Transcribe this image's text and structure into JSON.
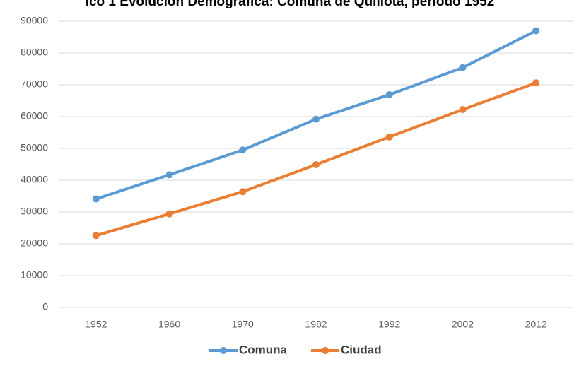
{
  "chart_data": {
    "type": "line",
    "title": "ico 1 Evolución Demográfica: Comuna de Quillota, período 1952",
    "categories": [
      "1952",
      "1960",
      "1970",
      "1982",
      "1992",
      "2002",
      "2012"
    ],
    "series": [
      {
        "name": "Comuna",
        "color": "#5b9bd5",
        "values": [
          34100,
          41700,
          49500,
          59200,
          66900,
          75400,
          87000
        ]
      },
      {
        "name": "Ciudad",
        "color": "#ed7d31",
        "values": [
          22600,
          29400,
          36400,
          44900,
          53600,
          62200,
          70600
        ]
      }
    ],
    "ylim": [
      0,
      90000
    ],
    "yticks": [
      0,
      10000,
      20000,
      30000,
      40000,
      50000,
      60000,
      70000,
      80000,
      90000
    ],
    "grid": true,
    "legend": "bottom"
  }
}
